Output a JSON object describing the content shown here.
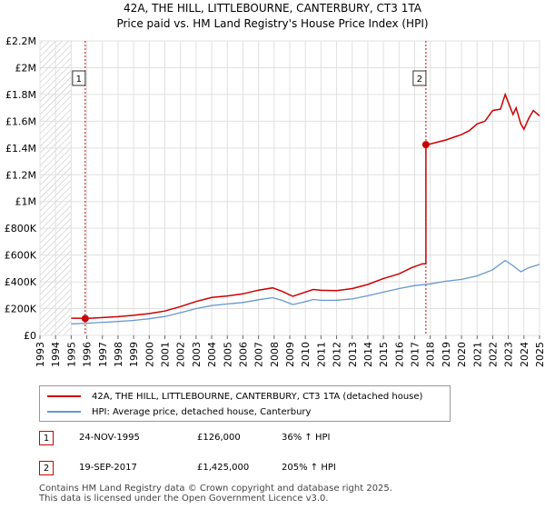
{
  "chart_data": {
    "type": "line",
    "title": "42A, THE HILL, LITTLEBOURNE, CANTERBURY, CT3 1TA",
    "subtitle": "Price paid vs. HM Land Registry's House Price Index (HPI)",
    "xlim": [
      1993,
      2025
    ],
    "ylim": [
      0,
      2200000
    ],
    "y_ticks": [
      0,
      200000,
      400000,
      600000,
      800000,
      1000000,
      1200000,
      1400000,
      1600000,
      1800000,
      2000000,
      2200000
    ],
    "y_tick_labels": [
      "£0",
      "£200K",
      "£400K",
      "£600K",
      "£800K",
      "£1M",
      "£1.2M",
      "£1.4M",
      "£1.6M",
      "£1.8M",
      "£2M",
      "£2.2M"
    ],
    "x_ticks": [
      1993,
      1994,
      1995,
      1996,
      1997,
      1998,
      1999,
      2000,
      2001,
      2002,
      2003,
      2004,
      2005,
      2006,
      2007,
      2008,
      2009,
      2010,
      2011,
      2012,
      2013,
      2014,
      2015,
      2016,
      2017,
      2018,
      2019,
      2020,
      2021,
      2022,
      2023,
      2024,
      2025
    ],
    "hatched_before": 1995.0,
    "series": [
      {
        "name": "42A, THE HILL, LITTLEBOURNE, CANTERBURY, CT3 1TA (detached house)",
        "color": "#cc0000",
        "points": [
          [
            1995.0,
            128000
          ],
          [
            1995.5,
            128000
          ],
          [
            1995.9,
            126000
          ],
          [
            1996.5,
            130000
          ],
          [
            1997,
            133000
          ],
          [
            1998,
            140000
          ],
          [
            1999,
            150000
          ],
          [
            2000,
            163000
          ],
          [
            2001,
            182000
          ],
          [
            2002,
            215000
          ],
          [
            2003,
            253000
          ],
          [
            2004,
            283000
          ],
          [
            2005,
            295000
          ],
          [
            2006,
            310000
          ],
          [
            2007,
            338000
          ],
          [
            2007.9,
            355000
          ],
          [
            2008.5,
            330000
          ],
          [
            2009.2,
            292000
          ],
          [
            2009.9,
            320000
          ],
          [
            2010.5,
            343000
          ],
          [
            2011,
            337000
          ],
          [
            2012,
            335000
          ],
          [
            2013,
            350000
          ],
          [
            2014,
            380000
          ],
          [
            2015,
            425000
          ],
          [
            2016,
            460000
          ],
          [
            2016.8,
            505000
          ],
          [
            2017.5,
            535000
          ],
          [
            2017.72,
            535000
          ],
          [
            2017.72,
            1425000
          ],
          [
            2018,
            1430000
          ],
          [
            2019,
            1460000
          ],
          [
            2019.5,
            1480000
          ],
          [
            2020,
            1500000
          ],
          [
            2020.5,
            1530000
          ],
          [
            2021,
            1580000
          ],
          [
            2021.5,
            1600000
          ],
          [
            2022,
            1680000
          ],
          [
            2022.5,
            1690000
          ],
          [
            2022.8,
            1800000
          ],
          [
            2023,
            1740000
          ],
          [
            2023.3,
            1650000
          ],
          [
            2023.5,
            1700000
          ],
          [
            2023.8,
            1580000
          ],
          [
            2024,
            1540000
          ],
          [
            2024.3,
            1620000
          ],
          [
            2024.6,
            1680000
          ],
          [
            2024.9,
            1650000
          ],
          [
            2025,
            1640000
          ]
        ]
      },
      {
        "name": "HPI: Average price, detached house, Canterbury",
        "color": "#6699cc",
        "points": [
          [
            1995.0,
            86000
          ],
          [
            1996,
            91000
          ],
          [
            1997,
            98000
          ],
          [
            1998,
            104000
          ],
          [
            1999,
            112000
          ],
          [
            2000,
            124000
          ],
          [
            2001,
            141000
          ],
          [
            2002,
            170000
          ],
          [
            2003,
            200000
          ],
          [
            2004,
            223000
          ],
          [
            2005,
            235000
          ],
          [
            2006,
            246000
          ],
          [
            2007,
            266000
          ],
          [
            2007.9,
            282000
          ],
          [
            2008.5,
            262000
          ],
          [
            2009.2,
            230000
          ],
          [
            2009.9,
            250000
          ],
          [
            2010.5,
            268000
          ],
          [
            2011,
            262000
          ],
          [
            2012,
            263000
          ],
          [
            2013,
            272000
          ],
          [
            2014,
            296000
          ],
          [
            2015,
            323000
          ],
          [
            2016,
            350000
          ],
          [
            2017,
            372000
          ],
          [
            2018,
            385000
          ],
          [
            2019,
            405000
          ],
          [
            2020,
            418000
          ],
          [
            2021,
            445000
          ],
          [
            2022,
            490000
          ],
          [
            2022.8,
            560000
          ],
          [
            2023.3,
            520000
          ],
          [
            2023.8,
            475000
          ],
          [
            2024.3,
            505000
          ],
          [
            2025,
            530000
          ]
        ]
      }
    ],
    "markers": [
      {
        "label": "1",
        "x": 1995.9,
        "y": 126000
      },
      {
        "label": "2",
        "x": 2017.72,
        "y": 1425000
      }
    ]
  },
  "legend": {
    "property_label": "42A, THE HILL, LITTLEBOURNE, CANTERBURY, CT3 1TA (detached house)",
    "hpi_label": "HPI: Average price, detached house, Canterbury"
  },
  "sales": [
    {
      "num": "1",
      "date": "24-NOV-1995",
      "price": "£126,000",
      "hpi": "36% ↑ HPI"
    },
    {
      "num": "2",
      "date": "19-SEP-2017",
      "price": "£1,425,000",
      "hpi": "205% ↑ HPI"
    }
  ],
  "footer": {
    "line1": "Contains HM Land Registry data © Crown copyright and database right 2025.",
    "line2": "This data is licensed under the Open Government Licence v3.0."
  }
}
